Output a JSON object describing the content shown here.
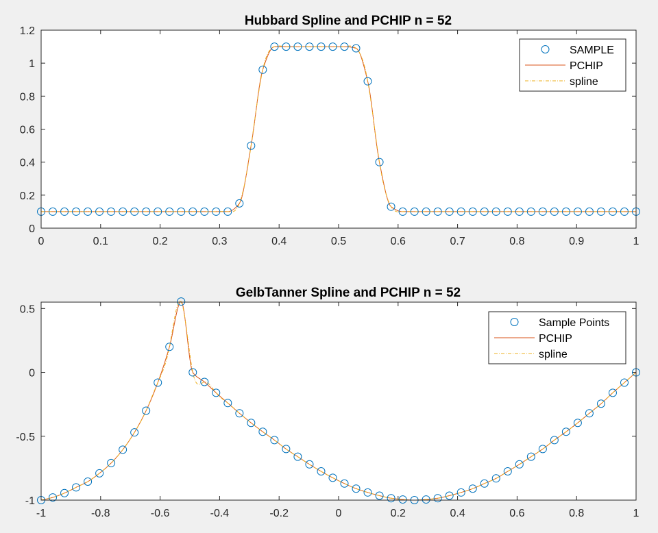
{
  "chart_data": [
    {
      "type": "line",
      "title": "Hubbard Spline and PCHIP n = 52",
      "xlim": [
        0,
        1
      ],
      "ylim": [
        0,
        1.2
      ],
      "xticks": [
        0,
        0.1,
        0.2,
        0.3,
        0.4,
        0.5,
        0.6,
        0.7,
        0.8,
        0.9,
        1
      ],
      "xtick_labels": [
        "0",
        "0.1",
        "0.2",
        "0.3",
        "0.4",
        "0.5",
        "0.6",
        "0.7",
        "0.8",
        "0.9",
        "1"
      ],
      "yticks": [
        0,
        0.2,
        0.4,
        0.6,
        0.8,
        1,
        1.2
      ],
      "ytick_labels": [
        "0",
        "0.2",
        "0.4",
        "0.6",
        "0.8",
        "1",
        "1.2"
      ],
      "legend": [
        "SAMPLE",
        "PCHIP",
        "spline"
      ],
      "legend_position": "top-right",
      "sample_x": [
        0,
        0.0196,
        0.0392,
        0.0588,
        0.0784,
        0.098,
        0.1176,
        0.1373,
        0.1569,
        0.1765,
        0.1961,
        0.2157,
        0.2353,
        0.2549,
        0.2745,
        0.2941,
        0.3137,
        0.3333,
        0.3529,
        0.3725,
        0.3922,
        0.4118,
        0.4314,
        0.451,
        0.4706,
        0.4902,
        0.5098,
        0.5294,
        0.549,
        0.5686,
        0.5882,
        0.6078,
        0.6275,
        0.6471,
        0.6667,
        0.6863,
        0.7059,
        0.7255,
        0.7451,
        0.7647,
        0.7843,
        0.8039,
        0.8235,
        0.8431,
        0.8627,
        0.8824,
        0.902,
        0.9216,
        0.9412,
        0.9608,
        0.9804,
        1
      ],
      "sample_y": [
        0.1,
        0.1,
        0.1,
        0.1,
        0.1,
        0.1,
        0.1,
        0.1,
        0.1,
        0.1,
        0.1,
        0.1,
        0.1,
        0.1,
        0.1,
        0.1,
        0.1,
        0.15,
        0.5,
        0.96,
        1.1,
        1.1,
        1.1,
        1.1,
        1.1,
        1.1,
        1.1,
        1.09,
        0.89,
        0.4,
        0.13,
        0.1,
        0.1,
        0.1,
        0.1,
        0.1,
        0.1,
        0.1,
        0.1,
        0.1,
        0.1,
        0.1,
        0.1,
        0.1,
        0.1,
        0.1,
        0.1,
        0.1,
        0.1,
        0.1,
        0.1,
        0.1
      ],
      "colors": {
        "sample": "#0072BD",
        "pchip": "#D95319",
        "spline": "#EDB120"
      }
    },
    {
      "type": "line",
      "title": "GelbTanner Spline and PCHIP n = 52",
      "xlim": [
        -1,
        1
      ],
      "ylim": [
        -1,
        0.55
      ],
      "xticks": [
        -1,
        -0.8,
        -0.6,
        -0.4,
        -0.2,
        0,
        0.2,
        0.4,
        0.6,
        0.8,
        1
      ],
      "xtick_labels": [
        "-1",
        "-0.8",
        "-0.6",
        "-0.4",
        "-0.2",
        "0",
        "0.2",
        "0.4",
        "0.6",
        "0.8",
        "1"
      ],
      "yticks": [
        -1,
        -0.5,
        0,
        0.5
      ],
      "ytick_labels": [
        "-1",
        "-0.5",
        "0",
        "0.5"
      ],
      "legend": [
        "Sample Points",
        "PCHIP",
        "spline"
      ],
      "legend_position": "top-right",
      "sample_x": [
        -1,
        -0.9608,
        -0.9216,
        -0.8824,
        -0.8431,
        -0.8039,
        -0.7647,
        -0.7255,
        -0.6863,
        -0.6471,
        -0.6078,
        -0.5686,
        -0.5294,
        -0.4902,
        -0.451,
        -0.4118,
        -0.3725,
        -0.3333,
        -0.2941,
        -0.2549,
        -0.2157,
        -0.1765,
        -0.1373,
        -0.098,
        -0.0588,
        -0.0196,
        0.0196,
        0.0588,
        0.098,
        0.1373,
        0.1765,
        0.2157,
        0.2549,
        0.2941,
        0.3333,
        0.3725,
        0.4118,
        0.451,
        0.4902,
        0.5294,
        0.5686,
        0.6078,
        0.6471,
        0.6863,
        0.7255,
        0.7647,
        0.8039,
        0.8431,
        0.8824,
        0.9216,
        0.9608,
        1
      ],
      "sample_y": [
        -1,
        -0.979,
        -0.945,
        -0.9,
        -0.855,
        -0.79,
        -0.71,
        -0.605,
        -0.47,
        -0.3,
        -0.08,
        0.2,
        0.555,
        0,
        -0.075,
        -0.16,
        -0.24,
        -0.32,
        -0.395,
        -0.465,
        -0.53,
        -0.6,
        -0.66,
        -0.72,
        -0.775,
        -0.825,
        -0.87,
        -0.91,
        -0.94,
        -0.965,
        -0.985,
        -0.995,
        -1,
        -0.995,
        -0.985,
        -0.965,
        -0.94,
        -0.91,
        -0.87,
        -0.83,
        -0.775,
        -0.72,
        -0.66,
        -0.6,
        -0.53,
        -0.465,
        -0.395,
        -0.32,
        -0.245,
        -0.16,
        -0.08,
        0
      ],
      "colors": {
        "sample": "#0072BD",
        "pchip": "#D95319",
        "spline": "#EDB120"
      }
    }
  ]
}
